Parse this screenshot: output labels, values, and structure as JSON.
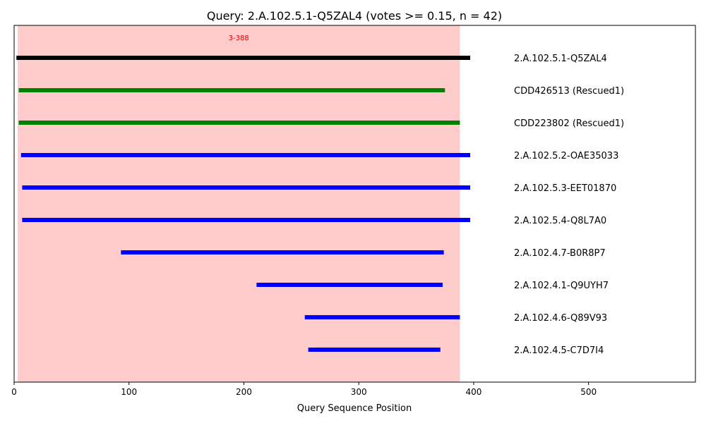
{
  "chart_data": {
    "type": "range-bar",
    "title": "Query: 2.A.102.5.1-Q5ZAL4 (votes >= 0.15, n = 42)",
    "xlabel": "Query Sequence Position",
    "ylabel": "",
    "xlim": [
      0,
      593
    ],
    "x_ticks": [
      0,
      100,
      200,
      300,
      400,
      500
    ],
    "x_tick_labels": [
      "0",
      "100",
      "200",
      "300",
      "400",
      "500"
    ],
    "highlight": {
      "start": 3,
      "end": 388,
      "label": "3-388",
      "color": "#ffcccc"
    },
    "series": [
      {
        "name": "2.A.102.5.1-Q5ZAL4",
        "start": 2,
        "end": 397,
        "color": "#000000"
      },
      {
        "name": "CDD426513 (Rescued1)",
        "start": 4,
        "end": 375,
        "color": "#008000"
      },
      {
        "name": "CDD223802 (Rescued1)",
        "start": 4,
        "end": 388,
        "color": "#008000"
      },
      {
        "name": "2.A.102.5.2-OAE35033",
        "start": 6,
        "end": 397,
        "color": "#0000ff"
      },
      {
        "name": "2.A.102.5.3-EET01870",
        "start": 7,
        "end": 397,
        "color": "#0000ff"
      },
      {
        "name": "2.A.102.5.4-Q8L7A0",
        "start": 7,
        "end": 397,
        "color": "#0000ff"
      },
      {
        "name": "2.A.102.4.7-B0R8P7",
        "start": 93,
        "end": 374,
        "color": "#0000ff"
      },
      {
        "name": "2.A.102.4.1-Q9UYH7",
        "start": 211,
        "end": 373,
        "color": "#0000ff"
      },
      {
        "name": "2.A.102.4.6-Q89V93",
        "start": 253,
        "end": 388,
        "color": "#0000ff"
      },
      {
        "name": "2.A.102.4.5-C7D7I4",
        "start": 256,
        "end": 371,
        "color": "#0000ff"
      }
    ]
  }
}
